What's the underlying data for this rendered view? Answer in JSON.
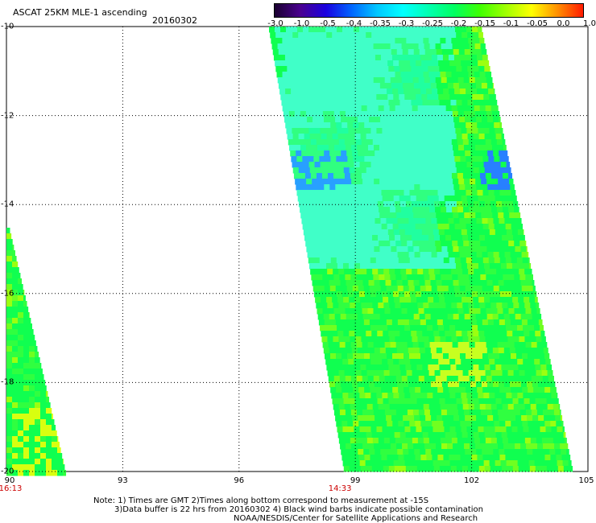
{
  "header": {
    "title": "ASCAT 25KM MLE-1 ascending",
    "date": "20160302"
  },
  "colorbar": {
    "labels": [
      "-3.0",
      "-1.0",
      "-0.5",
      "-0.4",
      "-0.35",
      "-0.3",
      "-0.25",
      "-0.2",
      "-0.15",
      "-0.1",
      "-0.05",
      "0.0",
      "1.0"
    ],
    "colors": [
      "#1a0030",
      "#4a0090",
      "#1a00e0",
      "#0066ff",
      "#00c8ff",
      "#00ffff",
      "#00ffb0",
      "#00ff60",
      "#40ff00",
      "#a0ff00",
      "#ffff00",
      "#ff9000",
      "#ff1a00"
    ]
  },
  "map": {
    "lon_range": [
      90,
      105
    ],
    "lat_range": [
      -10,
      -20
    ],
    "lon_ticks": [
      "90",
      "93",
      "96",
      "99",
      "102",
      "105"
    ],
    "lat_ticks": [
      "-10",
      "-12",
      "-14",
      "-16",
      "-18",
      "-20"
    ],
    "pass_times": [
      {
        "label": "16:13",
        "lon": 90
      },
      {
        "label": "14:33",
        "lon": 98.5
      }
    ]
  },
  "notes": {
    "line1": "Note: 1) Times are GMT 2)Times along bottom correspond to measurement at -15S",
    "line2": "3)Data buffer is 22 hrs from 20160302 4) Black wind barbs indicate possible contamination",
    "line3": "NOAA/NESDIS/Center for Satellite Applications and Research"
  }
}
